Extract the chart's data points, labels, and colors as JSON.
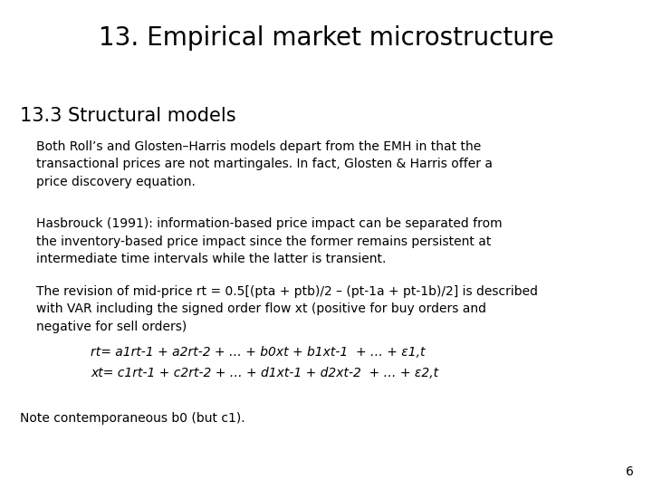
{
  "title": "13. Empirical market microstructure",
  "section": "13.3 Structural models",
  "para1": "Both Roll’s and Glosten–Harris models depart from the EMH in that the\ntransactional prices are not martingales. In fact, Glosten & Harris offer a\nprice discovery equation.",
  "para2": "Hasbrouck (1991): information-based price impact can be separated from\nthe inventory-based price impact since the former remains persistent at\nintermediate time intervals while the latter is transient.",
  "para3": "The revision of mid-price rt = 0.5[(pta + ptb)/2 – (pt-1a + pt-1b)/2] is described\nwith VAR including the signed order flow xt (positive for buy orders and\nnegative for sell orders)",
  "eq1": "rt= a1rt-1 + a2rt-2 + … + b0xt + b1xt-1  + … + ε1,t",
  "eq2": "xt= c1rt-1 + c2rt-2 + … + d1xt-1 + d2xt-2  + … + ε2,t",
  "note": "Note contemporaneous b0 (but c1).",
  "page_number": "6",
  "bg_color": "#ffffff",
  "text_color": "#000000",
  "title_fontsize": 20,
  "section_fontsize": 15,
  "body_fontsize": 10,
  "eq_fontsize": 10,
  "note_fontsize": 10,
  "page_fontsize": 10
}
